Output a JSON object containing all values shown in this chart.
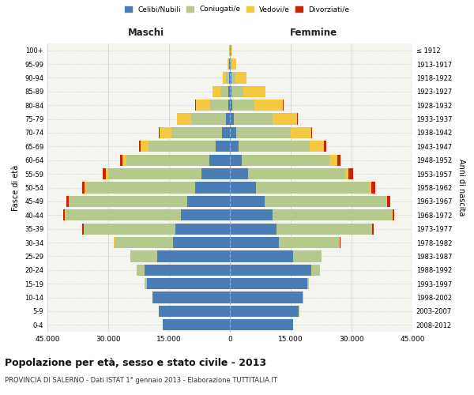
{
  "age_groups": [
    "0-4",
    "5-9",
    "10-14",
    "15-19",
    "20-24",
    "25-29",
    "30-34",
    "35-39",
    "40-44",
    "45-49",
    "50-54",
    "55-59",
    "60-64",
    "65-69",
    "70-74",
    "75-79",
    "80-84",
    "85-89",
    "90-94",
    "95-99",
    "100+"
  ],
  "birth_years": [
    "2008-2012",
    "2003-2007",
    "1998-2002",
    "1993-1997",
    "1988-1992",
    "1983-1987",
    "1978-1982",
    "1973-1977",
    "1968-1972",
    "1963-1967",
    "1958-1962",
    "1953-1957",
    "1948-1952",
    "1943-1947",
    "1938-1942",
    "1933-1937",
    "1928-1932",
    "1923-1927",
    "1918-1922",
    "1913-1917",
    "≤ 1912"
  ],
  "maschi": {
    "celibi": [
      16500,
      17500,
      19000,
      20500,
      21000,
      18000,
      14000,
      13500,
      12000,
      10500,
      8500,
      7000,
      5000,
      3500,
      2000,
      1000,
      400,
      300,
      200,
      100,
      50
    ],
    "coniugati": [
      30,
      50,
      100,
      500,
      2000,
      6500,
      14500,
      22500,
      28500,
      29000,
      27000,
      23000,
      20500,
      16500,
      12500,
      8500,
      4500,
      2000,
      700,
      200,
      80
    ],
    "vedovi": [
      2,
      3,
      5,
      10,
      30,
      50,
      80,
      100,
      150,
      200,
      300,
      500,
      1000,
      2000,
      2800,
      3500,
      3500,
      2000,
      800,
      300,
      100
    ],
    "divorziati": [
      1,
      2,
      5,
      10,
      30,
      80,
      150,
      250,
      400,
      600,
      700,
      800,
      600,
      350,
      150,
      100,
      80,
      50,
      30,
      10,
      5
    ]
  },
  "femmine": {
    "nubili": [
      15500,
      17000,
      18000,
      19000,
      20000,
      15500,
      12000,
      11500,
      10500,
      8500,
      6500,
      4500,
      3000,
      2200,
      1500,
      1000,
      600,
      450,
      350,
      200,
      100
    ],
    "coniugate": [
      30,
      50,
      100,
      500,
      2200,
      7000,
      15000,
      23500,
      29500,
      30000,
      28000,
      24000,
      21500,
      17500,
      13500,
      9500,
      5500,
      2800,
      1000,
      300,
      100
    ],
    "vedove": [
      2,
      3,
      5,
      10,
      20,
      40,
      60,
      80,
      100,
      200,
      400,
      800,
      2000,
      3500,
      5000,
      6000,
      7000,
      5500,
      2800,
      1000,
      300
    ],
    "divorziate": [
      1,
      2,
      5,
      10,
      30,
      80,
      150,
      300,
      500,
      800,
      900,
      1000,
      800,
      500,
      300,
      200,
      150,
      80,
      30,
      10,
      5
    ]
  },
  "colors": {
    "celibi": "#4A7CB5",
    "coniugati": "#B5C98E",
    "vedovi": "#F5C842",
    "divorziati": "#CC2200"
  },
  "xlim": 45000,
  "title": "Popolazione per età, sesso e stato civile - 2013",
  "subtitle": "PROVINCIA DI SALERNO - Dati ISTAT 1° gennaio 2013 - Elaborazione TUTTITALIA.IT",
  "xlabel_left": "Maschi",
  "xlabel_right": "Femmine",
  "ylabel_left": "Fasce di età",
  "ylabel_right": "Anni di nascita",
  "legend_labels": [
    "Celibi/Nubili",
    "Coniugati/e",
    "Vedovi/e",
    "Divorziati/e"
  ],
  "xticks": [
    -45000,
    -30000,
    -15000,
    0,
    15000,
    30000,
    45000
  ],
  "xtick_labels": [
    "45.000",
    "30.000",
    "15.000",
    "0",
    "15.000",
    "30.000",
    "45.000"
  ],
  "background_color": "#FFFFFF",
  "grid_color": "#CCCCCC",
  "plot_bg": "#F5F5F0"
}
